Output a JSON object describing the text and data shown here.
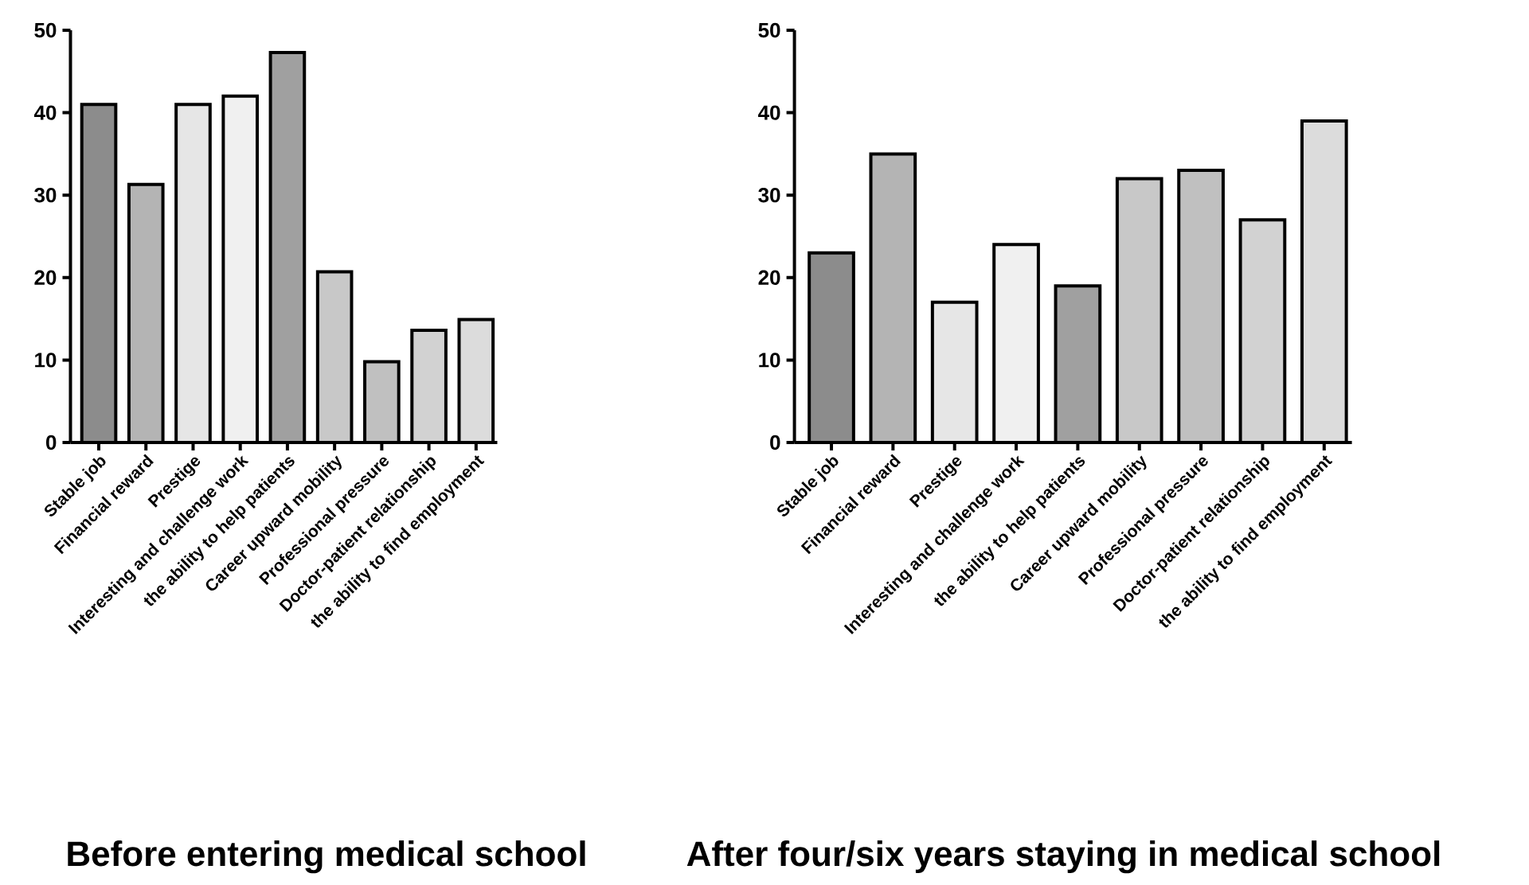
{
  "chart_data": [
    {
      "type": "bar",
      "title": "Before entering medical school",
      "categories": [
        "Stable job",
        "Financial reward",
        "Prestige",
        "Interesting and challenge work",
        "the ability to help patients",
        "Career upward mobility",
        "Professional pressure",
        "Doctor-patient relationship",
        "the ability to find employment"
      ],
      "values": [
        41,
        31.3,
        41,
        42,
        47.3,
        20.7,
        9.8,
        13.6,
        14.9
      ],
      "colors": [
        "#8c8c8c",
        "#b4b4b4",
        "#e6e6e6",
        "#f0f0f0",
        "#a0a0a0",
        "#c8c8c8",
        "#c0c0c0",
        "#d2d2d2",
        "#dcdcdc"
      ],
      "ylim": [
        0,
        50
      ],
      "yticks": [
        0,
        10,
        20,
        30,
        40,
        50
      ]
    },
    {
      "type": "bar",
      "title": "After four/six years staying in medical school",
      "categories": [
        "Stable job",
        "Financial reward",
        "Prestige",
        "Interesting and challenge work",
        "the ability to help patients",
        "Career upward mobility",
        "Professional pressure",
        "Doctor-patient relationship",
        "the ability to find employment"
      ],
      "values": [
        23,
        35,
        17,
        24,
        19,
        32,
        33,
        27,
        39
      ],
      "colors": [
        "#8c8c8c",
        "#b4b4b4",
        "#e6e6e6",
        "#f0f0f0",
        "#a0a0a0",
        "#c8c8c8",
        "#c0c0c0",
        "#d2d2d2",
        "#dcdcdc"
      ],
      "ylim": [
        0,
        50
      ],
      "yticks": [
        0,
        10,
        20,
        30,
        40,
        50
      ]
    }
  ]
}
